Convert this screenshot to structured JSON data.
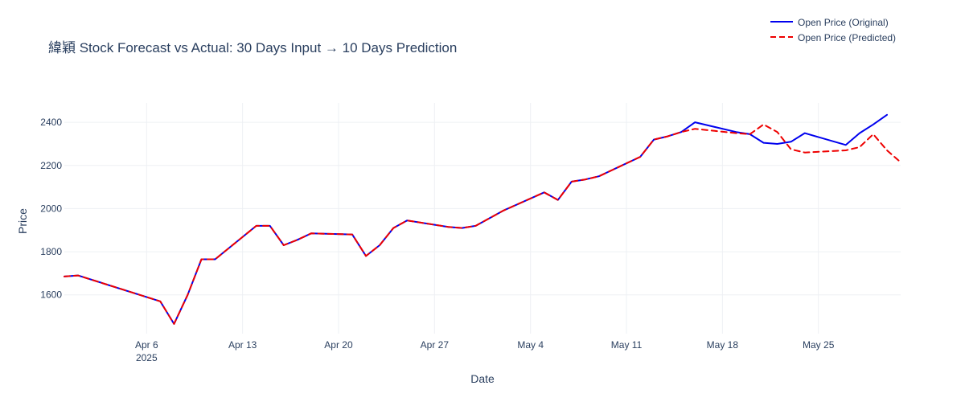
{
  "chart_data": {
    "type": "line",
    "title": "緯穎 Stock Forecast vs Actual: 30 Days Input → 10 Days Prediction",
    "xlabel": "Date",
    "ylabel": "Price",
    "xlim": [
      "2025-03-31",
      "2025-05-31"
    ],
    "ylim": [
      1420,
      2490
    ],
    "y_ticks": [
      1600,
      1800,
      2000,
      2200,
      2400
    ],
    "x_ticks": [
      {
        "date": "2025-04-06",
        "label": "Apr 6",
        "sublabel": "2025"
      },
      {
        "date": "2025-04-13",
        "label": "Apr 13"
      },
      {
        "date": "2025-04-20",
        "label": "Apr 20"
      },
      {
        "date": "2025-04-27",
        "label": "Apr 27"
      },
      {
        "date": "2025-05-04",
        "label": "May 4"
      },
      {
        "date": "2025-05-11",
        "label": "May 11"
      },
      {
        "date": "2025-05-18",
        "label": "May 18"
      },
      {
        "date": "2025-05-25",
        "label": "May 25"
      }
    ],
    "grid": true,
    "legend_position": "top-right",
    "series": [
      {
        "name": "Open Price (Original)",
        "color": "#0000ee",
        "style": "solid",
        "points": [
          [
            "2025-03-31",
            1685
          ],
          [
            "2025-04-01",
            1690
          ],
          [
            "2025-04-07",
            1570
          ],
          [
            "2025-04-08",
            1465
          ],
          [
            "2025-04-09",
            1600
          ],
          [
            "2025-04-10",
            1765
          ],
          [
            "2025-04-11",
            1765
          ],
          [
            "2025-04-14",
            1920
          ],
          [
            "2025-04-15",
            1920
          ],
          [
            "2025-04-16",
            1830
          ],
          [
            "2025-04-17",
            1855
          ],
          [
            "2025-04-18",
            1885
          ],
          [
            "2025-04-21",
            1880
          ],
          [
            "2025-04-22",
            1780
          ],
          [
            "2025-04-23",
            1830
          ],
          [
            "2025-04-24",
            1910
          ],
          [
            "2025-04-25",
            1945
          ],
          [
            "2025-04-28",
            1915
          ],
          [
            "2025-04-29",
            1910
          ],
          [
            "2025-04-30",
            1920
          ],
          [
            "2025-05-02",
            1990
          ],
          [
            "2025-05-05",
            2075
          ],
          [
            "2025-05-06",
            2040
          ],
          [
            "2025-05-07",
            2125
          ],
          [
            "2025-05-08",
            2135
          ],
          [
            "2025-05-09",
            2150
          ],
          [
            "2025-05-12",
            2240
          ],
          [
            "2025-05-13",
            2320
          ],
          [
            "2025-05-14",
            2335
          ],
          [
            "2025-05-15",
            2355
          ],
          [
            "2025-05-16",
            2400
          ],
          [
            "2025-05-19",
            2355
          ],
          [
            "2025-05-20",
            2345
          ],
          [
            "2025-05-21",
            2305
          ],
          [
            "2025-05-22",
            2300
          ],
          [
            "2025-05-23",
            2310
          ],
          [
            "2025-05-24",
            2350
          ],
          [
            "2025-05-27",
            2295
          ],
          [
            "2025-05-28",
            2350
          ],
          [
            "2025-05-29",
            2390
          ],
          [
            "2025-05-30",
            2435
          ]
        ]
      },
      {
        "name": "Open Price (Predicted)",
        "color": "#ee0000",
        "style": "dashed",
        "points": [
          [
            "2025-03-31",
            1685
          ],
          [
            "2025-04-01",
            1690
          ],
          [
            "2025-04-07",
            1570
          ],
          [
            "2025-04-08",
            1465
          ],
          [
            "2025-04-09",
            1600
          ],
          [
            "2025-04-10",
            1765
          ],
          [
            "2025-04-11",
            1765
          ],
          [
            "2025-04-14",
            1920
          ],
          [
            "2025-04-15",
            1920
          ],
          [
            "2025-04-16",
            1830
          ],
          [
            "2025-04-17",
            1855
          ],
          [
            "2025-04-18",
            1885
          ],
          [
            "2025-04-21",
            1880
          ],
          [
            "2025-04-22",
            1780
          ],
          [
            "2025-04-23",
            1830
          ],
          [
            "2025-04-24",
            1910
          ],
          [
            "2025-04-25",
            1945
          ],
          [
            "2025-04-28",
            1915
          ],
          [
            "2025-04-29",
            1910
          ],
          [
            "2025-04-30",
            1920
          ],
          [
            "2025-05-02",
            1990
          ],
          [
            "2025-05-05",
            2075
          ],
          [
            "2025-05-06",
            2040
          ],
          [
            "2025-05-07",
            2125
          ],
          [
            "2025-05-08",
            2135
          ],
          [
            "2025-05-09",
            2150
          ],
          [
            "2025-05-12",
            2240
          ],
          [
            "2025-05-13",
            2320
          ],
          [
            "2025-05-14",
            2335
          ],
          [
            "2025-05-15",
            2355
          ],
          [
            "2025-05-16",
            2370
          ],
          [
            "2025-05-19",
            2350
          ],
          [
            "2025-05-20",
            2345
          ],
          [
            "2025-05-21",
            2390
          ],
          [
            "2025-05-22",
            2355
          ],
          [
            "2025-05-23",
            2275
          ],
          [
            "2025-05-24",
            2260
          ],
          [
            "2025-05-27",
            2270
          ],
          [
            "2025-05-28",
            2285
          ],
          [
            "2025-05-29",
            2345
          ],
          [
            "2025-05-30",
            2270
          ],
          [
            "2025-05-31",
            2215
          ]
        ]
      }
    ]
  }
}
